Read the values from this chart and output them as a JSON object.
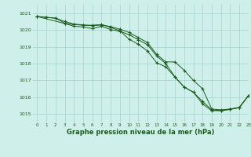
{
  "title": "Graphe pression niveau de la mer (hPa)",
  "bg_color": "#cff0ea",
  "grid_color": "#a8d8d0",
  "line_color": "#1a5c1a",
  "xlim": [
    -0.5,
    23
  ],
  "ylim": [
    1014.5,
    1021.5
  ],
  "yticks": [
    1015,
    1016,
    1017,
    1018,
    1019,
    1020,
    1021
  ],
  "xticks": [
    0,
    1,
    2,
    3,
    4,
    5,
    6,
    7,
    8,
    9,
    10,
    11,
    12,
    13,
    14,
    15,
    16,
    17,
    18,
    19,
    20,
    21,
    22,
    23
  ],
  "line1": {
    "x": [
      0,
      1,
      2,
      3,
      4,
      5,
      6,
      7,
      8,
      9,
      10,
      11,
      12,
      13,
      14,
      15,
      16,
      17,
      18,
      19,
      20,
      21,
      22,
      23
    ],
    "y": [
      1020.8,
      1020.75,
      1020.7,
      1020.5,
      1020.35,
      1020.3,
      1020.25,
      1020.3,
      1020.2,
      1020.05,
      1019.85,
      1019.55,
      1019.25,
      1018.55,
      1018.1,
      1018.1,
      1017.6,
      1017.0,
      1016.5,
      1015.3,
      1015.25,
      1015.3,
      1015.4,
      1016.1
    ]
  },
  "line2": {
    "x": [
      0,
      1,
      2,
      3,
      4,
      5,
      6,
      7,
      8,
      9,
      10,
      11,
      12,
      13,
      14,
      15,
      16,
      17,
      18,
      19,
      20,
      21,
      22,
      23
    ],
    "y": [
      1020.8,
      1020.75,
      1020.7,
      1020.4,
      1020.32,
      1020.28,
      1020.28,
      1020.32,
      1020.15,
      1019.95,
      1019.45,
      1019.15,
      1018.75,
      1018.05,
      1017.8,
      1017.2,
      1016.6,
      1016.3,
      1015.75,
      1015.25,
      1015.2,
      1015.28,
      1015.38,
      1016.1
    ]
  },
  "line3": {
    "x": [
      0,
      3,
      4,
      5,
      6,
      7,
      8,
      9,
      10,
      11,
      12,
      13,
      14,
      15,
      16,
      17,
      18,
      19,
      20,
      21,
      22,
      23
    ],
    "y": [
      1020.8,
      1020.38,
      1020.22,
      1020.18,
      1020.08,
      1020.22,
      1020.02,
      1019.92,
      1019.72,
      1019.42,
      1019.12,
      1018.45,
      1018.0,
      1017.2,
      1016.6,
      1016.3,
      1015.6,
      1015.2,
      1015.2,
      1015.28,
      1015.38,
      1016.1
    ]
  }
}
